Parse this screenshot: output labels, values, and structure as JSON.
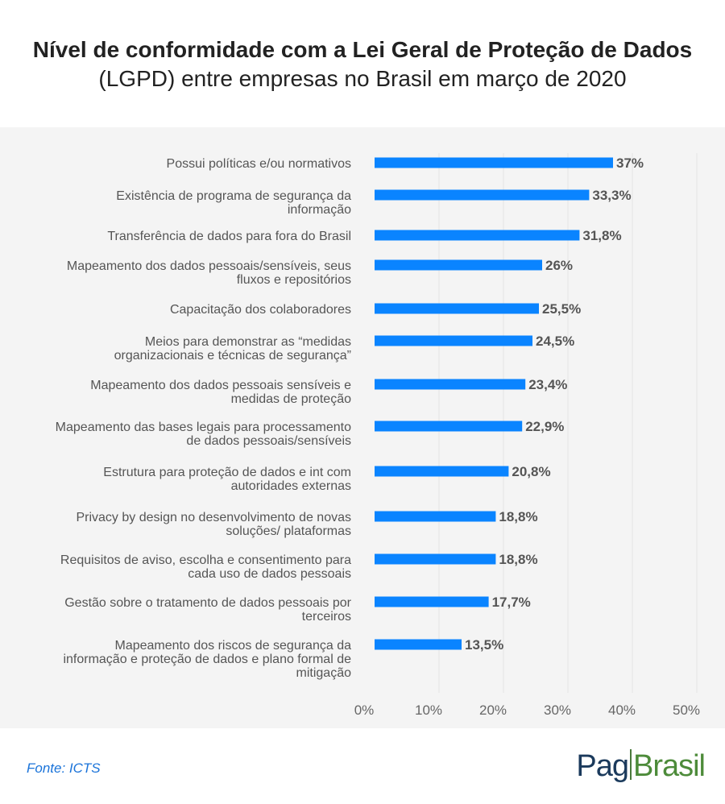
{
  "header": {
    "title_bold_part": "Nível de conformidade com a Lei Geral de Proteção de Dados",
    "title_light_part": "(LGPD) entre empresas no Brasil em março de 2020"
  },
  "footer": {
    "source": "Fonte: ICTS",
    "logo_left": "Pag",
    "logo_right": "Brasil"
  },
  "colors": {
    "bar": "#0a84ff",
    "panel": "#f4f4f4",
    "logo_blue": "#1b3a5c",
    "logo_green": "#4d8b3a"
  },
  "chart_data": {
    "type": "bar",
    "orientation": "horizontal",
    "categories": [
      [
        "Possui políticas e/ou normativos"
      ],
      [
        "Existência de programa de segurança da",
        "informação"
      ],
      [
        "Transferência de dados para fora do Brasil"
      ],
      [
        "Mapeamento dos dados pessoais/sensíveis, seus",
        "fluxos e repositórios"
      ],
      [
        "Capacitação dos colaboradores"
      ],
      [
        "Meios para demonstrar as “medidas",
        "organizacionais e técnicas de segurança”"
      ],
      [
        "Mapeamento dos dados pessoais sensíveis e",
        "medidas de proteção"
      ],
      [
        "Mapeamento das bases legais para processamento",
        "de dados pessoais/sensíveis"
      ],
      [
        "Estrutura para proteção de dados e int com",
        "autoridades externas"
      ],
      [
        "Privacy by design no desenvolvimento de novas",
        "soluções/ plataformas"
      ],
      [
        "Requisitos de aviso, escolha e consentimento para",
        "cada uso de dados pessoais"
      ],
      [
        "Gestão sobre o tratamento de dados pessoais por",
        "terceiros"
      ],
      [
        "Mapeamento dos riscos de segurança da",
        "informação e proteção de dados e plano formal de",
        "mitigação"
      ]
    ],
    "values": [
      37,
      33.3,
      31.8,
      26,
      25.5,
      24.5,
      23.4,
      22.9,
      20.8,
      18.8,
      18.8,
      17.7,
      13.5
    ],
    "value_labels": [
      "37%",
      "33,3%",
      "31,8%",
      "26%",
      "25,5%",
      "24,5%",
      "23,4%",
      "22,9%",
      "20,8%",
      "18,8%",
      "18,8%",
      "17,7%",
      "13,5%"
    ],
    "x_ticks": [
      0,
      10,
      20,
      30,
      40,
      50
    ],
    "x_tick_labels": [
      "0%",
      "10%",
      "20%",
      "30%",
      "40%",
      "50%"
    ],
    "xlim": [
      0,
      50
    ],
    "grid": true,
    "legend": "none"
  }
}
